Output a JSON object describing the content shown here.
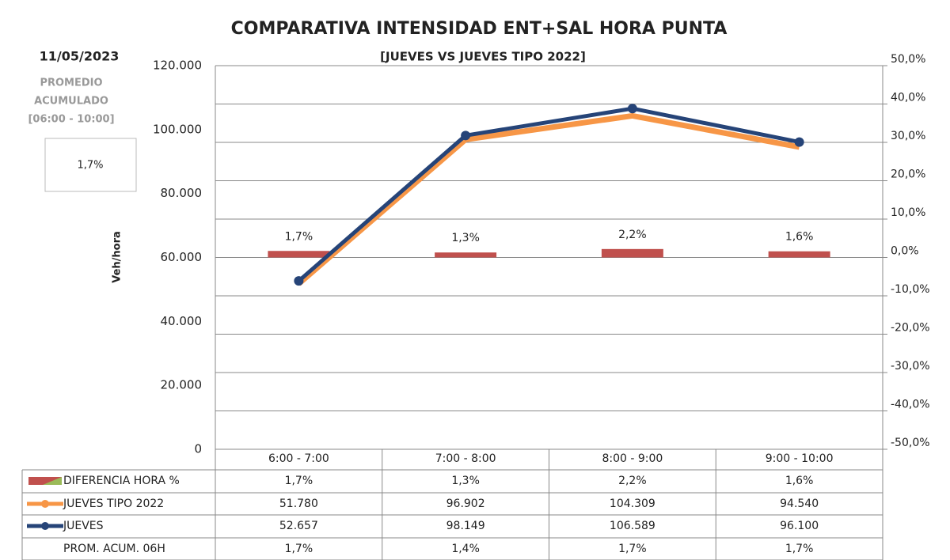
{
  "chart_data": {
    "type": "combo",
    "title": "COMPARATIVA INTENSIDAD ENT+SAL HORA PUNTA",
    "subtitle": "[JUEVES VS JUEVES TIPO 2022]",
    "y_label": "Veh/hora",
    "annotations": {
      "date": "11/05/2023",
      "note": [
        "PROMEDIO",
        "ACUMULADO",
        "[06:00 - 10:00]"
      ],
      "box_value": "1,7%"
    },
    "categories": [
      "6:00 - 7:00",
      "7:00 - 8:00",
      "8:00 - 9:00",
      "9:00 - 10:00"
    ],
    "series": [
      {
        "name": "DIFERENCIA HORA %",
        "type": "bar",
        "axis": "y2",
        "color": "#c0504d",
        "values": [
          1.7,
          1.3,
          2.2,
          1.6
        ],
        "value_labels": [
          "1,7%",
          "1,3%",
          "2,2%",
          "1,6%"
        ]
      },
      {
        "name": "JUEVES TIPO 2022",
        "type": "line",
        "color": "#f79646",
        "values": [
          51780,
          96902,
          104309,
          94540
        ],
        "value_labels": [
          "51.780",
          "96.902",
          "104.309",
          "94.540"
        ]
      },
      {
        "name": "JUEVES",
        "type": "line",
        "color": "#264478",
        "values": [
          52657,
          98149,
          106589,
          96100
        ],
        "value_labels": [
          "52.657",
          "98.149",
          "106.589",
          "96.100"
        ]
      },
      {
        "name": "PROM. ACUM. 06H",
        "values": [
          1.7,
          1.4,
          1.7,
          1.7
        ],
        "value_labels": [
          "1,7%",
          "1,4%",
          "1,7%",
          "1,7%"
        ]
      }
    ],
    "ylim": [
      0,
      120000
    ],
    "yticks": [
      0,
      {
        "value": 20000,
        "label": "20.000"
      },
      {
        "value": 40000,
        "label": "40.000"
      },
      {
        "value": 60000,
        "label": "60.000"
      },
      {
        "value": 80000,
        "label": "80.000"
      },
      {
        "value": 100000,
        "label": "100.000"
      },
      {
        "value": 120000,
        "label": "120.000"
      }
    ],
    "y2lim": [
      -50,
      50
    ],
    "y2ticks": [
      {
        "value": -50,
        "label": "-50,0%"
      },
      {
        "value": -40,
        "label": "-40,0%"
      },
      {
        "value": -30,
        "label": "-30,0%"
      },
      {
        "value": -20,
        "label": "-20,0%"
      },
      {
        "value": -10,
        "label": "-10,0%"
      },
      {
        "value": 0,
        "label": "0,0%"
      },
      {
        "value": 10,
        "label": "10,0%"
      },
      {
        "value": 20,
        "label": "20,0%"
      },
      {
        "value": 30,
        "label": "30,0%"
      },
      {
        "value": 40,
        "label": "40,0%"
      },
      {
        "value": 50,
        "label": "50,0%"
      }
    ],
    "grid": true
  }
}
